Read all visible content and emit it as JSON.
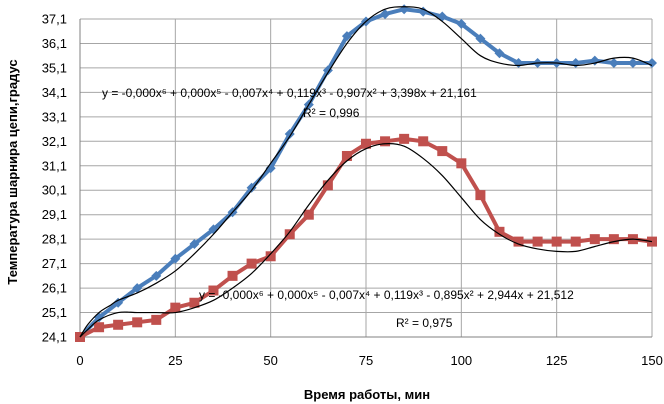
{
  "chart_data": {
    "type": "line",
    "xlabel": "Время работы, мин",
    "ylabel": "Температура шарнира цепи,градус",
    "xlim": [
      0,
      150
    ],
    "ylim": [
      24.1,
      37.1
    ],
    "x_ticks": [
      "0",
      "25",
      "50",
      "75",
      "100",
      "125",
      "150"
    ],
    "y_ticks": [
      "24,1",
      "25,1",
      "26,1",
      "27,1",
      "28,1",
      "29,1",
      "30,1",
      "31,1",
      "32,1",
      "33,1",
      "34,1",
      "35,1",
      "36,1",
      "37,1"
    ],
    "grid": true,
    "colors": {
      "blue": "#4a7ebb",
      "red": "#c0504d",
      "trend": "#000000",
      "grid": "#a6a6a6"
    },
    "series": [
      {
        "color": "#4a7ebb",
        "marker": "diamond",
        "x": [
          0,
          5,
          10,
          15,
          20,
          25,
          30,
          35,
          40,
          45,
          50,
          55,
          60,
          65,
          70,
          75,
          80,
          85,
          90,
          95,
          100,
          105,
          110,
          115,
          120,
          125,
          130,
          135,
          140,
          145,
          150
        ],
        "y": [
          24.1,
          24.9,
          25.5,
          26.1,
          26.6,
          27.3,
          27.9,
          28.5,
          29.2,
          30.2,
          31.0,
          32.4,
          33.6,
          35.0,
          36.4,
          37.0,
          37.3,
          37.5,
          37.4,
          37.2,
          36.9,
          36.3,
          35.7,
          35.3,
          35.3,
          35.3,
          35.3,
          35.4,
          35.3,
          35.3,
          35.3
        ],
        "trendline": {
          "degree": 6,
          "equation": "y = -0,000x⁶ + 0,000x⁵ - 0,007x⁴ + 0,119x³ - 0,907x² + 3,398x + 21,161",
          "r2": "R² = 0,996",
          "x": [
            0,
            2,
            5,
            8,
            10,
            15,
            20,
            25,
            30,
            35,
            40,
            45,
            50,
            55,
            60,
            65,
            70,
            75,
            80,
            85,
            90,
            95,
            100,
            105,
            110,
            115,
            120,
            125,
            130,
            135,
            140,
            145,
            150
          ],
          "y": [
            24.1,
            24.6,
            25.1,
            25.4,
            25.6,
            25.9,
            26.3,
            26.8,
            27.5,
            28.3,
            29.2,
            30.1,
            31.2,
            32.3,
            33.6,
            34.9,
            36.1,
            37.0,
            37.5,
            37.6,
            37.5,
            37.0,
            36.3,
            35.6,
            35.3,
            35.2,
            35.3,
            35.3,
            35.2,
            35.3,
            35.5,
            35.5,
            35.2
          ]
        }
      },
      {
        "color": "#c0504d",
        "marker": "square",
        "x": [
          0,
          5,
          10,
          15,
          20,
          25,
          30,
          35,
          40,
          45,
          50,
          55,
          60,
          65,
          70,
          75,
          80,
          85,
          90,
          95,
          100,
          105,
          110,
          115,
          120,
          125,
          130,
          135,
          140,
          145,
          150
        ],
        "y": [
          24.1,
          24.5,
          24.6,
          24.7,
          24.8,
          25.3,
          25.5,
          26.0,
          26.6,
          27.1,
          27.4,
          28.3,
          29.1,
          30.3,
          31.5,
          32.0,
          32.1,
          32.2,
          32.1,
          31.7,
          31.2,
          29.9,
          28.4,
          28.0,
          28.0,
          28.0,
          28.0,
          28.1,
          28.1,
          28.1,
          28.0
        ],
        "trendline": {
          "degree": 6,
          "equation": "y = -0,000x⁶ + 0,000x⁵ - 0,007x⁴ + 0,119x³ - 0,895x² + 2,944x + 21,512",
          "r2": "R² = 0,975",
          "x": [
            0,
            2,
            5,
            10,
            15,
            20,
            25,
            30,
            35,
            40,
            45,
            50,
            55,
            60,
            65,
            70,
            75,
            80,
            85,
            90,
            95,
            100,
            105,
            110,
            115,
            120,
            125,
            130,
            135,
            140,
            145,
            150
          ],
          "y": [
            24.1,
            24.4,
            24.8,
            25.1,
            25.1,
            25.1,
            25.1,
            25.3,
            25.6,
            26.1,
            26.7,
            27.5,
            28.4,
            29.5,
            30.5,
            31.3,
            31.8,
            32.0,
            31.9,
            31.4,
            30.7,
            29.8,
            28.9,
            28.3,
            27.9,
            27.7,
            27.6,
            27.6,
            27.8,
            28.0,
            28.1,
            28.0
          ]
        }
      }
    ]
  }
}
